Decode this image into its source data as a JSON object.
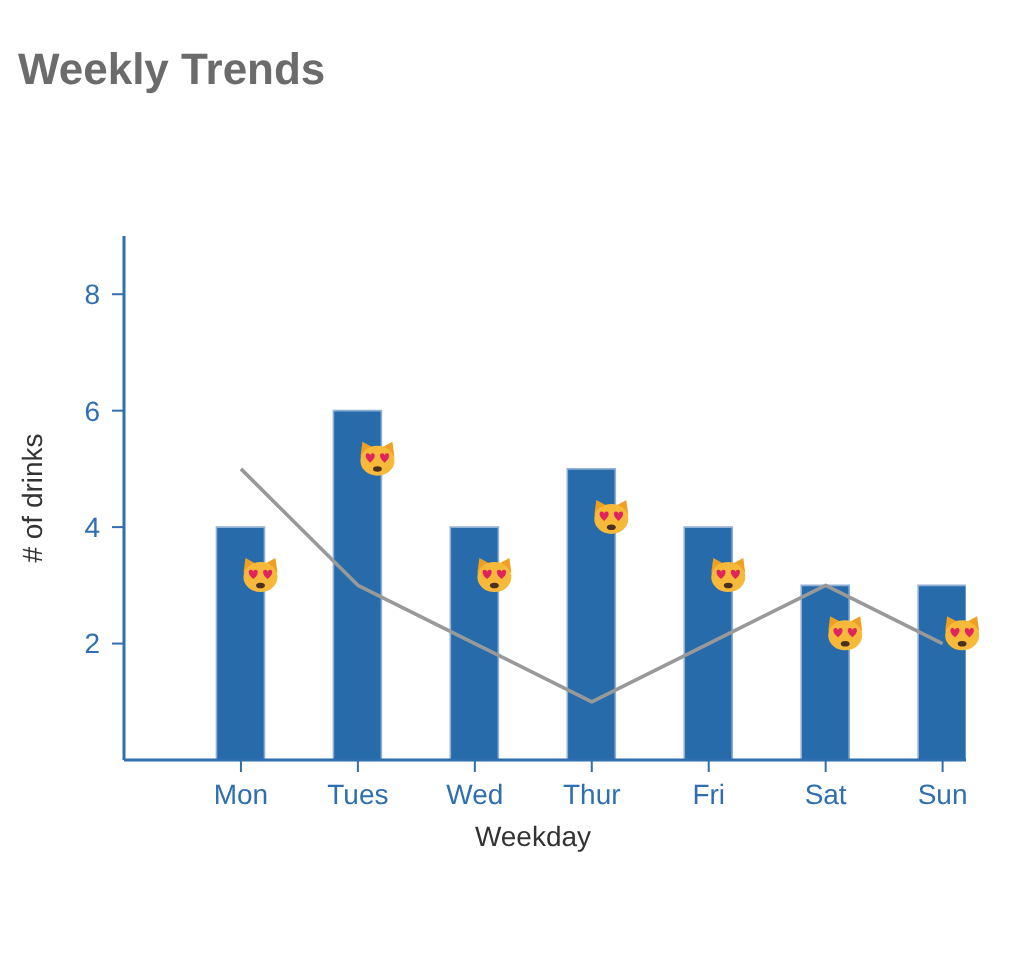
{
  "chart_data": {
    "type": "bar",
    "title": "Weekly Trends",
    "xlabel": "Weekday",
    "ylabel": "# of drinks",
    "categories": [
      "Mon",
      "Tues",
      "Wed",
      "Thur",
      "Fri",
      "Sat",
      "Sun"
    ],
    "series": [
      {
        "color": "#276bab",
        "values": [
          4,
          6,
          4,
          5,
          4,
          3,
          3
        ]
      },
      {
        "type": "line",
        "color": "#999999",
        "values": [
          5,
          3,
          2,
          1,
          2,
          3,
          2
        ]
      }
    ],
    "ylim": [
      0,
      9
    ],
    "yticks": [
      2,
      4,
      6,
      8
    ],
    "marker": "none"
  }
}
